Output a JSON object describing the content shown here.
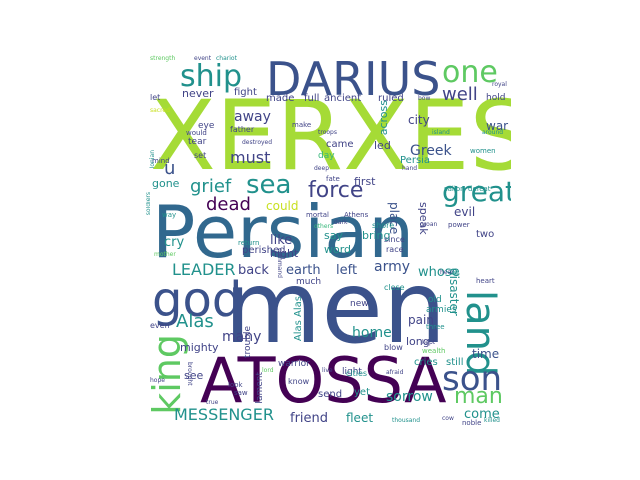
{
  "palette": {
    "lime": "#a5db36",
    "green": "#5ec962",
    "teal": "#21918c",
    "blue": "#31688e",
    "indigo": "#3b528b",
    "purple": "#440154",
    "navy": "#414487",
    "aqua": "#35b779",
    "pale": "#c8e020"
  },
  "words": {
    "xerxes": "XERXES",
    "persian": "Persian",
    "men": "men",
    "atossa": "ATOSSA",
    "darius": "DARIUS",
    "god": "god",
    "land": "land",
    "king": "king",
    "son": "son",
    "one": "one",
    "ship": "ship",
    "sea": "sea",
    "great": "great",
    "force": "force",
    "leader": "LEADER",
    "man": "man",
    "messenger": "MESSENGER",
    "alas": "Alas",
    "grief": "grief",
    "dead": "dead",
    "well": "well",
    "greek": "Greek",
    "must": "must",
    "away": "away",
    "army": "army",
    "earth": "earth",
    "left": "left",
    "home": "home",
    "many": "many",
    "sorrow": "sorrow",
    "come": "come",
    "friend": "friend",
    "fleet": "fleet",
    "time": "time",
    "back": "back",
    "like": "like",
    "night": "night",
    "cry": "cry",
    "could": "could",
    "whose": "whose",
    "city": "city",
    "war": "war",
    "evil": "evil",
    "spear": "spear",
    "never": "never",
    "fight": "fight",
    "made": "made",
    "full": "full",
    "ancient": "ancient",
    "ruled": "ruled",
    "u": "u",
    "gone": "gone",
    "mighty": "mighty",
    "see": "see",
    "spirit": "spirit",
    "disaster": "disaster",
    "pain": "pain",
    "long": "long",
    "place": "place",
    "thing": "thing",
    "speak": "speak",
    "bring": "bring",
    "say": "say",
    "word": "word",
    "cries": "cries",
    "still": "still",
    "alas_alas": "Alas Alas",
    "across": "across",
    "led": "led",
    "first": "first",
    "persia": "Persia",
    "hold": "hold",
    "tear": "tear",
    "eye": "eye",
    "set": "set",
    "father": "father",
    "came": "came",
    "day": "day",
    "lament": "lament",
    "send": "send",
    "yet": "yet",
    "light": "light",
    "two": "two",
    "perished": "perished",
    "warrior": "warrior",
    "old": "old",
    "armies": "armies",
    "even": "even",
    "new": "new",
    "blow": "blow",
    "close": "close",
    "much": "much",
    "trouble": "trouble",
    "know": "know",
    "noble": "noble",
    "make": "make",
    "let": "let",
    "would": "would",
    "destroyed": "destroyed",
    "wealth": "wealth",
    "since": "since",
    "race": "race",
    "shore": "shore",
    "return": "return",
    "mind": "mind",
    "look": "look",
    "saw": "saw",
    "mortal": "mortal",
    "dark": "dark",
    "athens": "Athens",
    "fate": "fate",
    "power": "power",
    "sailor": "sailor",
    "defeat": "defeat",
    "women": "women",
    "sacred": "sacred",
    "bow": "bow",
    "royal": "royal",
    "around": "around",
    "strength": "strength",
    "event": "event",
    "chariot": "chariot",
    "ionian": "Ionian",
    "heart": "heart",
    "three": "three",
    "killed": "killed",
    "thousand": "thousand",
    "cities": "cities",
    "hear": "hear",
    "afraid": "afraid",
    "hope": "hope",
    "brought": "brought",
    "live": "live",
    "mother": "mother",
    "others": "others",
    "way": "way",
    "soldiers": "soldiers",
    "hand": "hand",
    "deep": "deep",
    "troops": "troops",
    "lord": "lord",
    "island": "island",
    "groan": "groan",
    "command": "command",
    "kept": "kept",
    "true": "true",
    "cow": "cow"
  }
}
